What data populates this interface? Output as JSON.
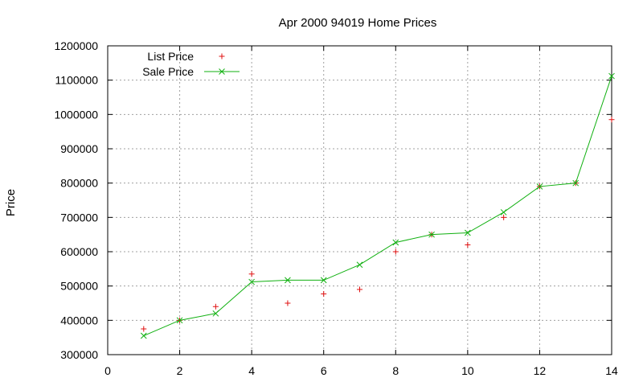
{
  "chart_data": {
    "type": "line",
    "title": "Apr 2000 94019 Home Prices",
    "xlabel": "",
    "ylabel": "Price",
    "xlim": [
      0,
      14
    ],
    "ylim": [
      300000,
      1200000
    ],
    "x_ticks": [
      "0",
      "2",
      "4",
      "6",
      "8",
      "10",
      "12",
      "14"
    ],
    "y_ticks": [
      "300000",
      "400000",
      "500000",
      "600000",
      "700000",
      "800000",
      "900000",
      "1000000",
      "1100000",
      "1200000"
    ],
    "grid": true,
    "legend_position": "top-left",
    "series": [
      {
        "name": "List Price",
        "style": "points",
        "marker": "plus",
        "color": "#e01010",
        "x": [
          1,
          2,
          3,
          4,
          5,
          6,
          7,
          8,
          9,
          10,
          11,
          12,
          13,
          14
        ],
        "y": [
          375000,
          400000,
          440000,
          535000,
          450000,
          477000,
          490000,
          600000,
          650000,
          620000,
          700000,
          790000,
          800000,
          985000
        ]
      },
      {
        "name": "Sale Price",
        "style": "linespoints",
        "marker": "cross",
        "color": "#10b010",
        "x": [
          1,
          2,
          3,
          4,
          5,
          6,
          7,
          8,
          9,
          10,
          11,
          12,
          13,
          14
        ],
        "y": [
          355000,
          400000,
          420000,
          512000,
          517000,
          517000,
          562000,
          627000,
          650000,
          655000,
          715000,
          790000,
          800000,
          1112000
        ]
      }
    ]
  }
}
